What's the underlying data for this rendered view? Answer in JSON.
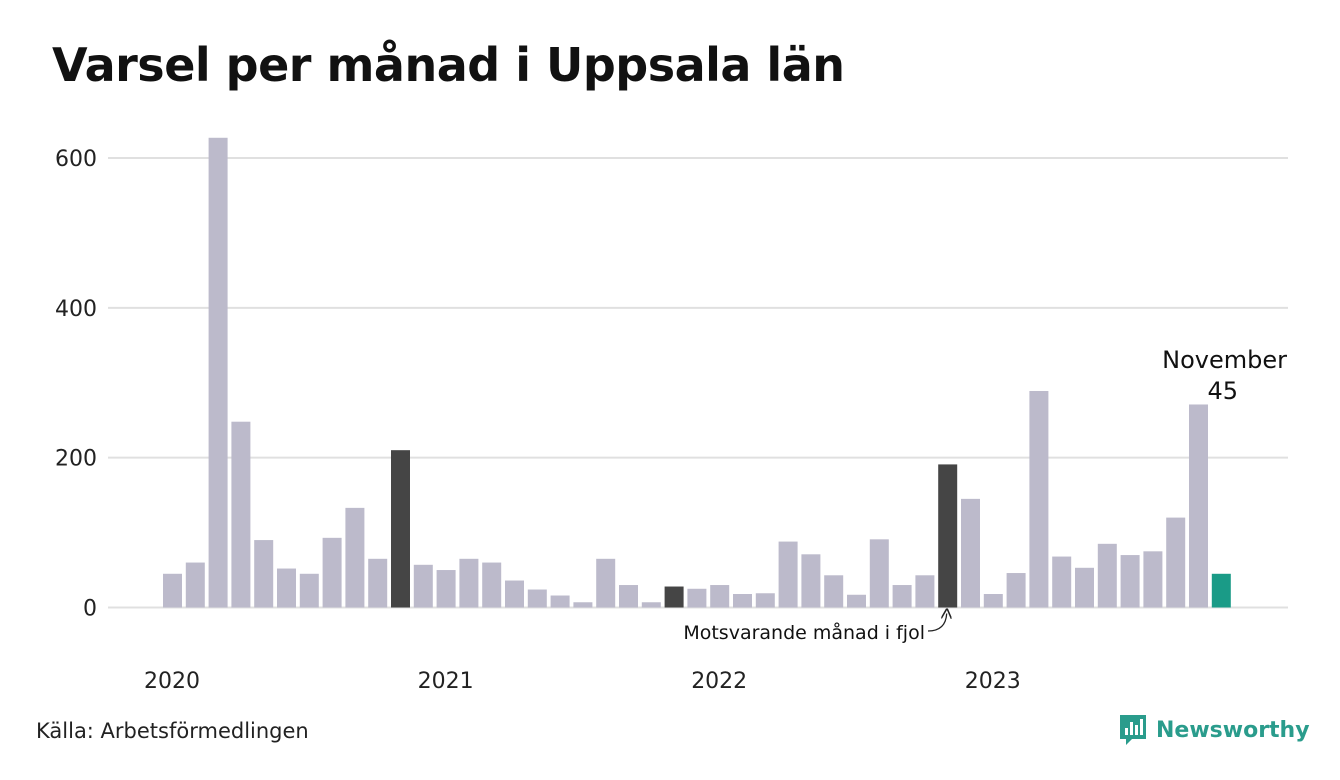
{
  "title": "Varsel per månad i Uppsala län",
  "source": "Källa: Arbetsförmedlingen",
  "brand": "Newsworthy",
  "colors": {
    "bar": "#bcbacb",
    "highlight": "#454545",
    "current": "#1a9b87",
    "grid": "#e0e0e0",
    "brand": "#2a9c8c"
  },
  "chart_data": {
    "type": "bar",
    "ylim": [
      0,
      650
    ],
    "y_ticks": [
      0,
      200,
      400,
      600
    ],
    "grid": true,
    "x_tick_labels": [
      {
        "label": "2020",
        "index": 0
      },
      {
        "label": "2021",
        "index": 12
      },
      {
        "label": "2022",
        "index": 24
      },
      {
        "label": "2023",
        "index": 36
      }
    ],
    "values": [
      45,
      60,
      627,
      248,
      90,
      52,
      45,
      93,
      133,
      65,
      210,
      57,
      50,
      65,
      60,
      36,
      24,
      16,
      7,
      65,
      30,
      7,
      28,
      25,
      30,
      18,
      19,
      88,
      71,
      43,
      17,
      91,
      30,
      43,
      191,
      145,
      18,
      46,
      289,
      68,
      53,
      85,
      70,
      75,
      120,
      271,
      45
    ],
    "highlight_indices": [
      10,
      22,
      34
    ],
    "current_index": 46,
    "annotations": {
      "current_month": "November",
      "current_value": "45",
      "previous_year": "Motsvarande månad i fjol"
    }
  }
}
